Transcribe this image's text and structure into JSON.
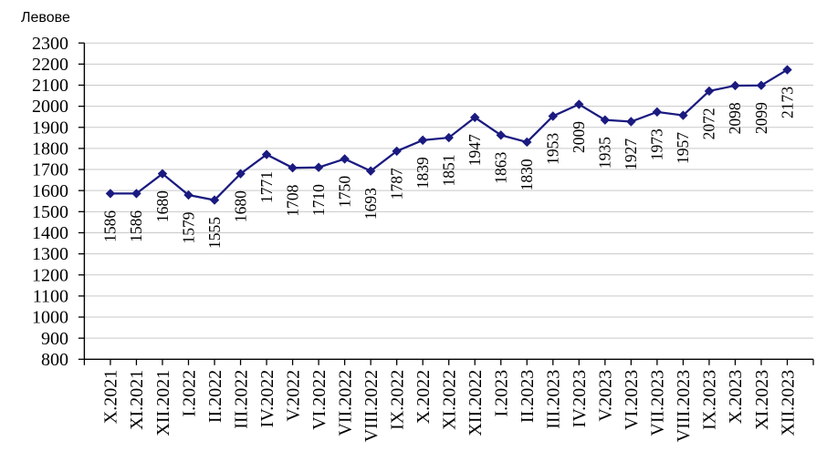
{
  "chart_data": {
    "type": "line",
    "title": "Левове",
    "categories": [
      "X.2021",
      "XI.2021",
      "XII.2021",
      "I.2022",
      "II.2022",
      "III.2022",
      "IV.2022",
      "V.2022",
      "VI.2022",
      "VII.2022",
      "VIII.2022",
      "IX.2022",
      "X.2022",
      "XI.2022",
      "XII.2022",
      "I.2023",
      "II.2023",
      "III.2023",
      "IV.2023",
      "V.2023",
      "VI.2023",
      "VII.2023",
      "VIII.2023",
      "IX.2023",
      "X.2023",
      "XI.2023",
      "XII.2023"
    ],
    "values": [
      1586,
      1586,
      1680,
      1579,
      1555,
      1680,
      1771,
      1708,
      1710,
      1750,
      1693,
      1787,
      1839,
      1851,
      1947,
      1863,
      1830,
      1953,
      2009,
      1935,
      1927,
      1973,
      1957,
      2072,
      2098,
      2099,
      2173
    ],
    "ylabel": "Левове",
    "xlabel": "",
    "ylim": [
      800,
      2300
    ],
    "ytick_step": 100,
    "data_labels": "below, rotated 90",
    "grid": "horizontal",
    "legend": "none",
    "marker": "diamond",
    "colors": {
      "series": "#1a1a80",
      "gridline": "#c9c9c9",
      "axis": "#000000",
      "text": "#000000",
      "background": "#ffffff"
    }
  }
}
